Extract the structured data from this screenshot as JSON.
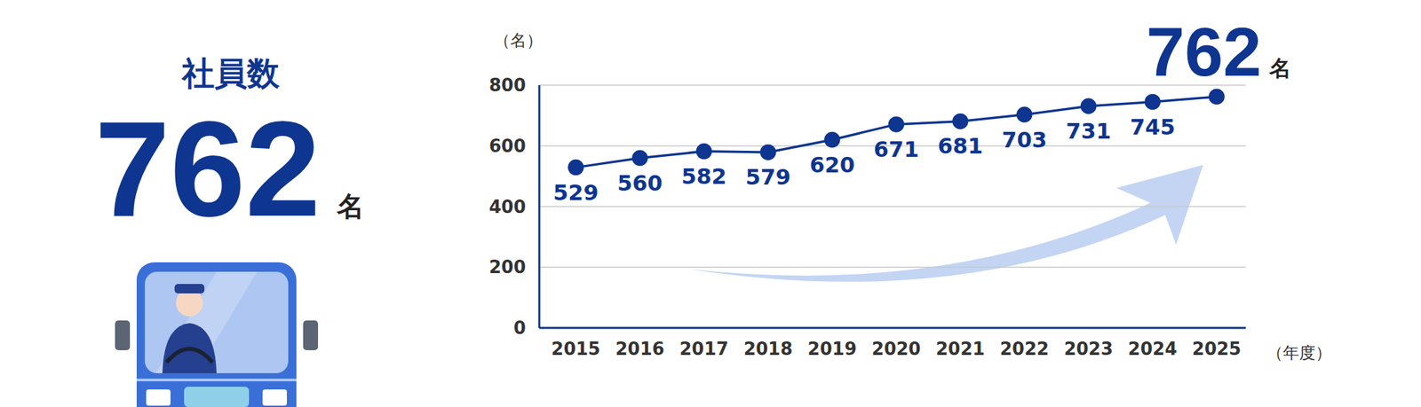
{
  "chart_data": {
    "type": "line",
    "title": "社員数",
    "headline_value": 762,
    "headline_unit": "名",
    "y_label": "（名）",
    "x_label": "（年度）",
    "categories": [
      "2015",
      "2016",
      "2017",
      "2018",
      "2019",
      "2020",
      "2021",
      "2022",
      "2023",
      "2024",
      "2025"
    ],
    "values": [
      529,
      560,
      582,
      579,
      620,
      671,
      681,
      703,
      731,
      745,
      762
    ],
    "value_labels": [
      "529",
      "560",
      "582",
      "579",
      "620",
      "671",
      "681",
      "703",
      "731",
      "745",
      null
    ],
    "color": "#0e3590",
    "ylim": [
      0,
      800
    ],
    "yticks": [
      0,
      200,
      400,
      600,
      800
    ],
    "grid": true,
    "data_labels": true,
    "marker": "circle",
    "line_style": "solid"
  }
}
